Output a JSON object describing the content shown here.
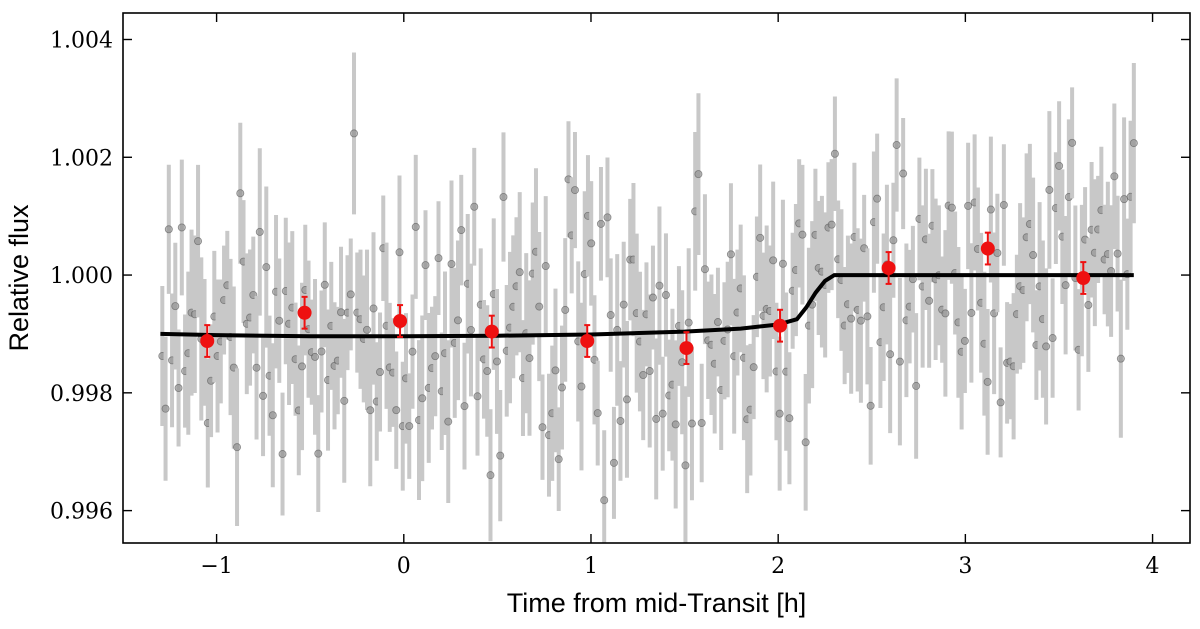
{
  "chart_data": {
    "type": "scatter",
    "title": "",
    "xlabel": "Time from mid-Transit [h]",
    "ylabel": "Relative flux",
    "xlim": [
      -1.5,
      4.2
    ],
    "ylim": [
      0.99545,
      1.00445
    ],
    "xticks": [
      -1,
      0,
      1,
      2,
      3,
      4
    ],
    "xtick_labels": [
      "−1",
      "0",
      "1",
      "2",
      "3",
      "4"
    ],
    "yticks": [
      0.996,
      0.998,
      1.0,
      1.002,
      1.004
    ],
    "ytick_labels": [
      "0.996",
      "0.998",
      "1.000",
      "1.002",
      "1.004"
    ],
    "grid": false,
    "series": [
      {
        "kind": "binned-points",
        "color": "#ee1111",
        "x": [
          -1.05,
          -0.53,
          -0.02,
          0.47,
          0.98,
          1.51,
          2.01,
          2.59,
          3.12,
          3.63
        ],
        "y": [
          0.99888,
          0.99936,
          0.99922,
          0.99904,
          0.99888,
          0.99876,
          0.99914,
          1.00012,
          1.00045,
          0.99995
        ],
        "err": [
          0.00027,
          0.00027,
          0.00027,
          0.00027,
          0.00027,
          0.00027,
          0.00027,
          0.00027,
          0.00027,
          0.00027
        ]
      },
      {
        "kind": "model-curve",
        "color": "#000000",
        "x": [
          -1.3,
          -1.0,
          -0.5,
          0.0,
          0.5,
          1.0,
          1.5,
          1.8,
          2.0,
          2.1,
          2.15,
          2.2,
          2.25,
          2.3,
          2.35,
          2.5,
          3.0,
          3.5,
          3.9
        ],
        "y": [
          0.999,
          0.99898,
          0.99896,
          0.99896,
          0.99897,
          0.99899,
          0.99904,
          0.99909,
          0.99916,
          0.99925,
          0.99945,
          0.9997,
          0.9999,
          1.0,
          1.0,
          1.0,
          1.0,
          1.0,
          1.0
        ]
      },
      {
        "kind": "unbinned-points",
        "color": "#888888",
        "errcolor": "#c8c8c8",
        "x_start": -1.29,
        "x_end": 3.9,
        "count": 300,
        "scatter_sigma": 0.0011,
        "err": 0.0011
      }
    ]
  }
}
